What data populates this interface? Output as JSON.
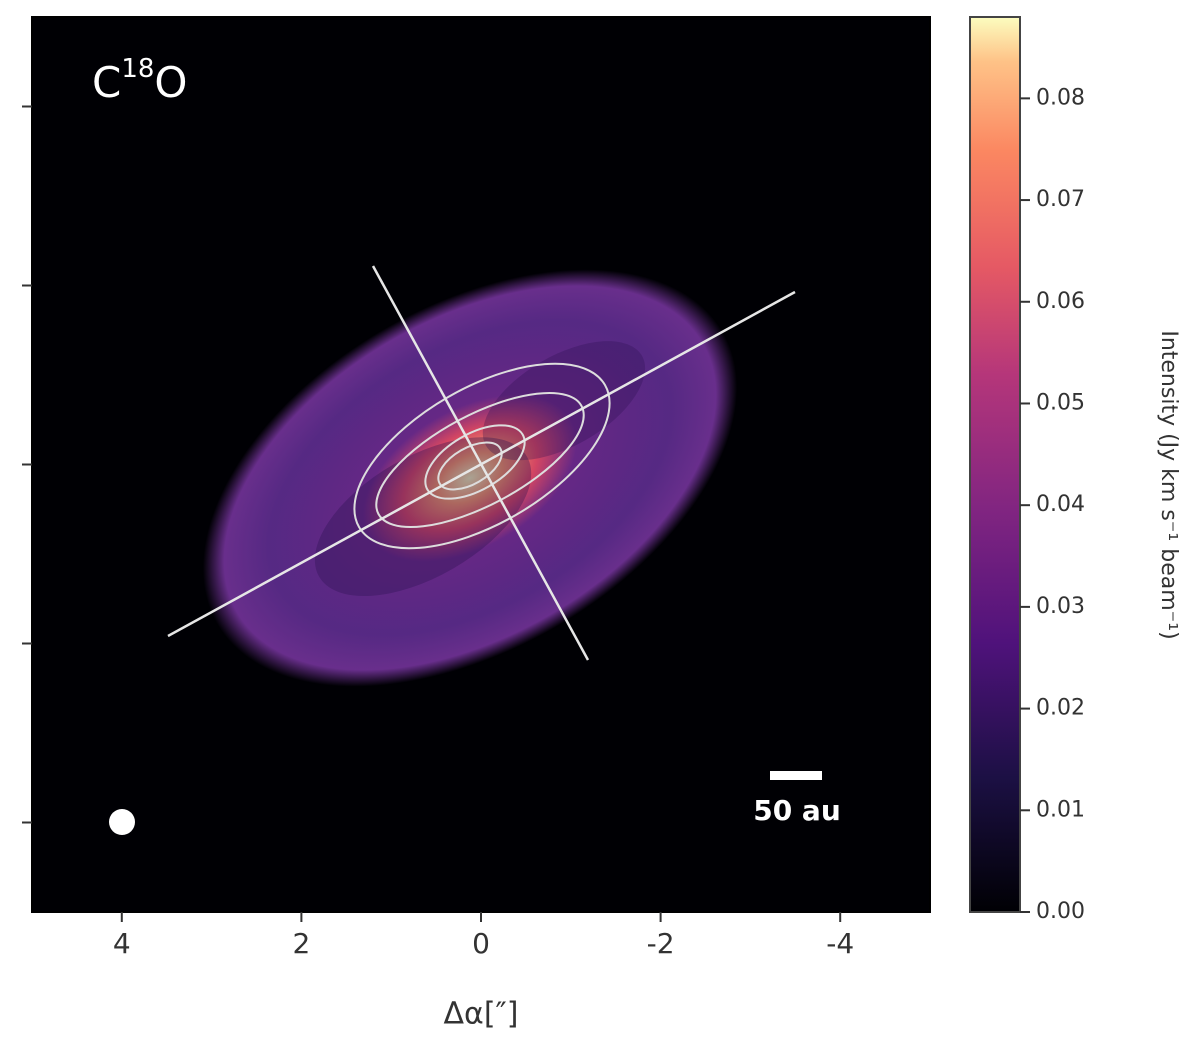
{
  "chart_data": {
    "type": "image",
    "title": {
      "base": "C",
      "sup": "18",
      "tail": "O"
    },
    "x_label": "Δα[″]",
    "xlim": [
      5,
      -5
    ],
    "xticks": [
      4,
      2,
      0,
      -2,
      -4
    ],
    "ylim": [
      -5,
      5
    ],
    "yticks": [
      -4,
      -2,
      0,
      2,
      4
    ],
    "colorbar": {
      "label": "Intensity (Jy km s⁻¹ beam⁻¹)",
      "lim": [
        0,
        0.088
      ],
      "ticks": [
        {
          "value": 0,
          "label": "0.00"
        },
        0.01,
        0.02,
        0.03,
        0.04,
        0.05,
        0.06,
        0.07,
        0.08
      ]
    },
    "scale_bar_label": "50 au"
  }
}
